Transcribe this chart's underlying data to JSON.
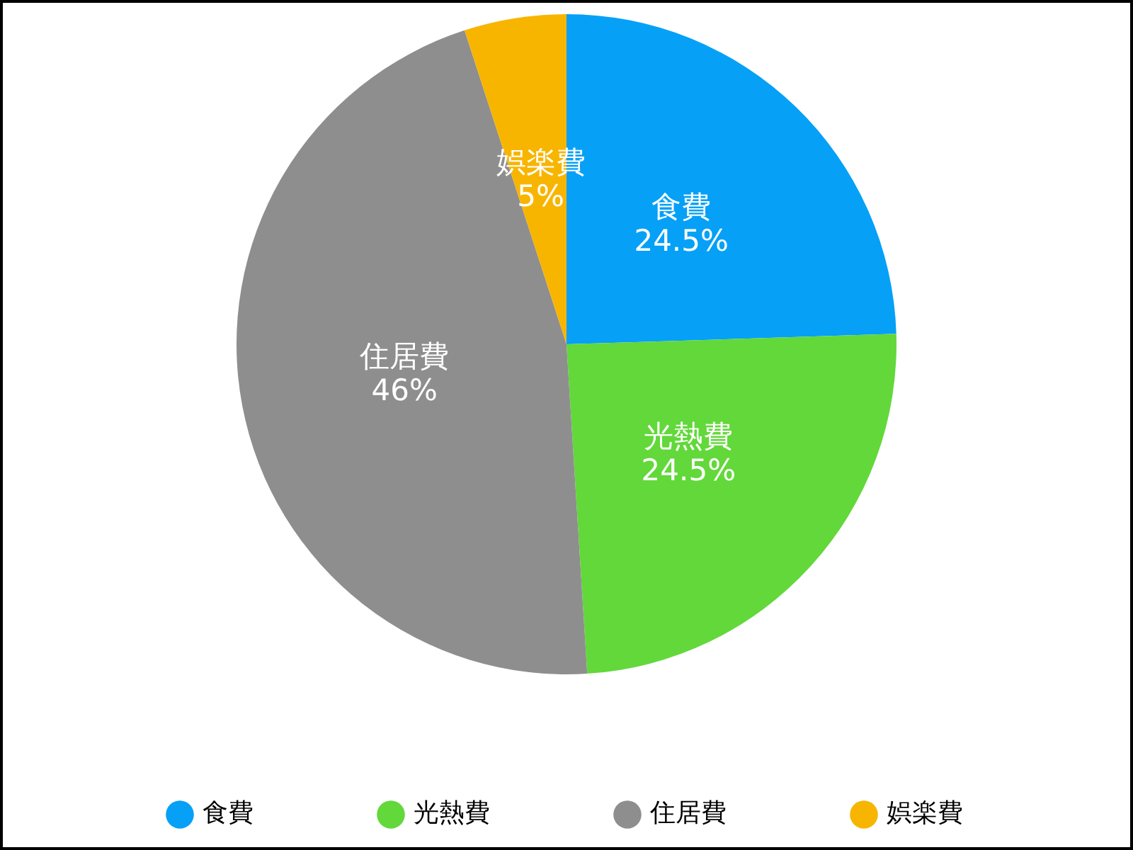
{
  "chart_data": {
    "type": "pie",
    "categories": [
      "食費",
      "光熱費",
      "住居費",
      "娯楽費"
    ],
    "values": [
      24.5,
      24.5,
      46,
      5
    ],
    "colors": [
      "#06a0f7",
      "#62d83a",
      "#8e8e8e",
      "#f7b500"
    ],
    "value_labels": [
      "24.5%",
      "24.5%",
      "46%",
      "5%"
    ],
    "legend": "bottom"
  }
}
